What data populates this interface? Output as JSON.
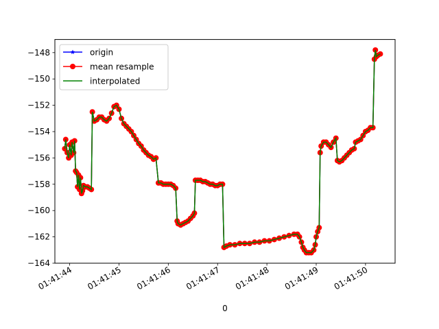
{
  "chart_data": {
    "type": "line",
    "title": "",
    "xlabel": "0",
    "ylabel": "",
    "x_range": [
      "01:41:43.70",
      "01:41:50.60"
    ],
    "ylim": [
      -164,
      -147
    ],
    "x_ticks": [
      "01:41:44",
      "01:41:45",
      "01:41:46",
      "01:41:47",
      "01:41:48",
      "01:41:49",
      "01:41:50"
    ],
    "y_ticks": [
      -148,
      -150,
      -152,
      -154,
      -156,
      -158,
      -160,
      -162,
      -164
    ],
    "grid": false,
    "legend_position": "upper-left",
    "series": [
      {
        "name": "origin",
        "color": "#0000ff",
        "marker": "star",
        "points": [
          [
            "01:41:43.90",
            -155.3
          ],
          [
            "01:41:43.92",
            -154.6
          ],
          [
            "01:41:43.95",
            -155.6
          ],
          [
            "01:41:43.98",
            -156.0
          ],
          [
            "01:41:44.00",
            -155.0
          ],
          [
            "01:41:44.03",
            -155.8
          ],
          [
            "01:41:44.05",
            -154.8
          ],
          [
            "01:41:44.08",
            -155.6
          ],
          [
            "01:41:44.10",
            -154.7
          ],
          [
            "01:41:44.12",
            -157.0
          ],
          [
            "01:41:44.14",
            -157.1
          ],
          [
            "01:41:44.16",
            -158.2
          ],
          [
            "01:41:44.18",
            -157.3
          ],
          [
            "01:41:44.20",
            -158.4
          ],
          [
            "01:41:44.22",
            -157.5
          ],
          [
            "01:41:44.24",
            -158.7
          ],
          [
            "01:41:44.26",
            -158.5
          ],
          [
            "01:41:44.28",
            -158.1
          ],
          [
            "01:41:44.32",
            -158.2
          ],
          [
            "01:41:44.36",
            -158.2
          ],
          [
            "01:41:44.40",
            -158.3
          ],
          [
            "01:41:44.44",
            -158.4
          ],
          [
            "01:41:44.46",
            -152.5
          ],
          [
            "01:41:44.50",
            -153.2
          ],
          [
            "01:41:44.55",
            -153.1
          ],
          [
            "01:41:44.60",
            -152.9
          ],
          [
            "01:41:44.65",
            -152.9
          ],
          [
            "01:41:44.70",
            -153.1
          ],
          [
            "01:41:44.75",
            -153.2
          ],
          [
            "01:41:44.80",
            -153.0
          ],
          [
            "01:41:44.85",
            -152.6
          ],
          [
            "01:41:44.90",
            -152.1
          ],
          [
            "01:41:44.95",
            -152.0
          ],
          [
            "01:41:45.00",
            -152.3
          ],
          [
            "01:41:45.05",
            -153.0
          ],
          [
            "01:41:45.10",
            -153.4
          ],
          [
            "01:41:45.15",
            -153.6
          ],
          [
            "01:41:45.20",
            -153.8
          ],
          [
            "01:41:45.25",
            -154.0
          ],
          [
            "01:41:45.30",
            -154.3
          ],
          [
            "01:41:45.35",
            -154.6
          ],
          [
            "01:41:45.40",
            -154.9
          ],
          [
            "01:41:45.45",
            -155.1
          ],
          [
            "01:41:45.50",
            -155.4
          ],
          [
            "01:41:45.55",
            -155.6
          ],
          [
            "01:41:45.60",
            -155.8
          ],
          [
            "01:41:45.65",
            -155.9
          ],
          [
            "01:41:45.70",
            -156.1
          ],
          [
            "01:41:45.75",
            -156.0
          ],
          [
            "01:41:45.80",
            -157.9
          ],
          [
            "01:41:45.85",
            -157.9
          ],
          [
            "01:41:45.90",
            -158.0
          ],
          [
            "01:41:45.95",
            -158.0
          ],
          [
            "01:41:46.00",
            -158.0
          ],
          [
            "01:41:46.05",
            -158.0
          ],
          [
            "01:41:46.10",
            -158.1
          ],
          [
            "01:41:46.15",
            -158.3
          ],
          [
            "01:41:46.18",
            -160.8
          ],
          [
            "01:41:46.20",
            -161.0
          ],
          [
            "01:41:46.25",
            -161.1
          ],
          [
            "01:41:46.30",
            -161.0
          ],
          [
            "01:41:46.35",
            -160.9
          ],
          [
            "01:41:46.40",
            -160.8
          ],
          [
            "01:41:46.45",
            -160.6
          ],
          [
            "01:41:46.50",
            -160.4
          ],
          [
            "01:41:46.53",
            -160.2
          ],
          [
            "01:41:46.55",
            -157.7
          ],
          [
            "01:41:46.60",
            -157.7
          ],
          [
            "01:41:46.65",
            -157.7
          ],
          [
            "01:41:46.70",
            -157.8
          ],
          [
            "01:41:46.75",
            -157.8
          ],
          [
            "01:41:46.80",
            -157.9
          ],
          [
            "01:41:46.85",
            -158.0
          ],
          [
            "01:41:46.90",
            -158.0
          ],
          [
            "01:41:46.95",
            -158.1
          ],
          [
            "01:41:47.00",
            -158.1
          ],
          [
            "01:41:47.05",
            -158.0
          ],
          [
            "01:41:47.10",
            -158.0
          ],
          [
            "01:41:47.13",
            -162.8
          ],
          [
            "01:41:47.18",
            -162.7
          ],
          [
            "01:41:47.25",
            -162.6
          ],
          [
            "01:41:47.35",
            -162.6
          ],
          [
            "01:41:47.45",
            -162.5
          ],
          [
            "01:41:47.55",
            -162.5
          ],
          [
            "01:41:47.65",
            -162.5
          ],
          [
            "01:41:47.75",
            -162.4
          ],
          [
            "01:41:47.85",
            -162.4
          ],
          [
            "01:41:47.95",
            -162.3
          ],
          [
            "01:41:48.05",
            -162.3
          ],
          [
            "01:41:48.15",
            -162.2
          ],
          [
            "01:41:48.25",
            -162.1
          ],
          [
            "01:41:48.35",
            -162.0
          ],
          [
            "01:41:48.45",
            -161.9
          ],
          [
            "01:41:48.55",
            -161.8
          ],
          [
            "01:41:48.62",
            -161.8
          ],
          [
            "01:41:48.66",
            -162.0
          ],
          [
            "01:41:48.70",
            -162.4
          ],
          [
            "01:41:48.73",
            -162.8
          ],
          [
            "01:41:48.76",
            -163.0
          ],
          [
            "01:41:48.80",
            -163.2
          ],
          [
            "01:41:48.85",
            -163.2
          ],
          [
            "01:41:48.90",
            -163.2
          ],
          [
            "01:41:48.95",
            -163.0
          ],
          [
            "01:41:48.98",
            -162.6
          ],
          [
            "01:41:49.00",
            -162.0
          ],
          [
            "01:41:49.03",
            -161.6
          ],
          [
            "01:41:49.06",
            -161.3
          ],
          [
            "01:41:49.08",
            -155.6
          ],
          [
            "01:41:49.10",
            -155.1
          ],
          [
            "01:41:49.15",
            -154.8
          ],
          [
            "01:41:49.20",
            -154.8
          ],
          [
            "01:41:49.25",
            -155.0
          ],
          [
            "01:41:49.30",
            -155.2
          ],
          [
            "01:41:49.35",
            -154.8
          ],
          [
            "01:41:49.40",
            -154.5
          ],
          [
            "01:41:49.43",
            -156.2
          ],
          [
            "01:41:49.47",
            -156.3
          ],
          [
            "01:41:49.52",
            -156.2
          ],
          [
            "01:41:49.57",
            -156.0
          ],
          [
            "01:41:49.62",
            -155.8
          ],
          [
            "01:41:49.67",
            -155.6
          ],
          [
            "01:41:49.72",
            -155.4
          ],
          [
            "01:41:49.77",
            -155.3
          ],
          [
            "01:41:49.80",
            -154.8
          ],
          [
            "01:41:49.85",
            -154.7
          ],
          [
            "01:41:49.90",
            -154.6
          ],
          [
            "01:41:49.95",
            -154.3
          ],
          [
            "01:41:50.00",
            -154.0
          ],
          [
            "01:41:50.05",
            -153.9
          ],
          [
            "01:41:50.10",
            -153.7
          ],
          [
            "01:41:50.15",
            -153.7
          ],
          [
            "01:41:50.18",
            -148.5
          ],
          [
            "01:41:50.20",
            -147.8
          ],
          [
            "01:41:50.22",
            -148.3
          ],
          [
            "01:41:50.25",
            -148.2
          ],
          [
            "01:41:50.30",
            -148.1
          ]
        ]
      },
      {
        "name": "mean resample",
        "color": "#ff0000",
        "marker": "circle",
        "same_points_as": "origin"
      },
      {
        "name": "interpolated",
        "color": "#008000",
        "marker": "none",
        "same_points_as": "origin"
      }
    ]
  }
}
